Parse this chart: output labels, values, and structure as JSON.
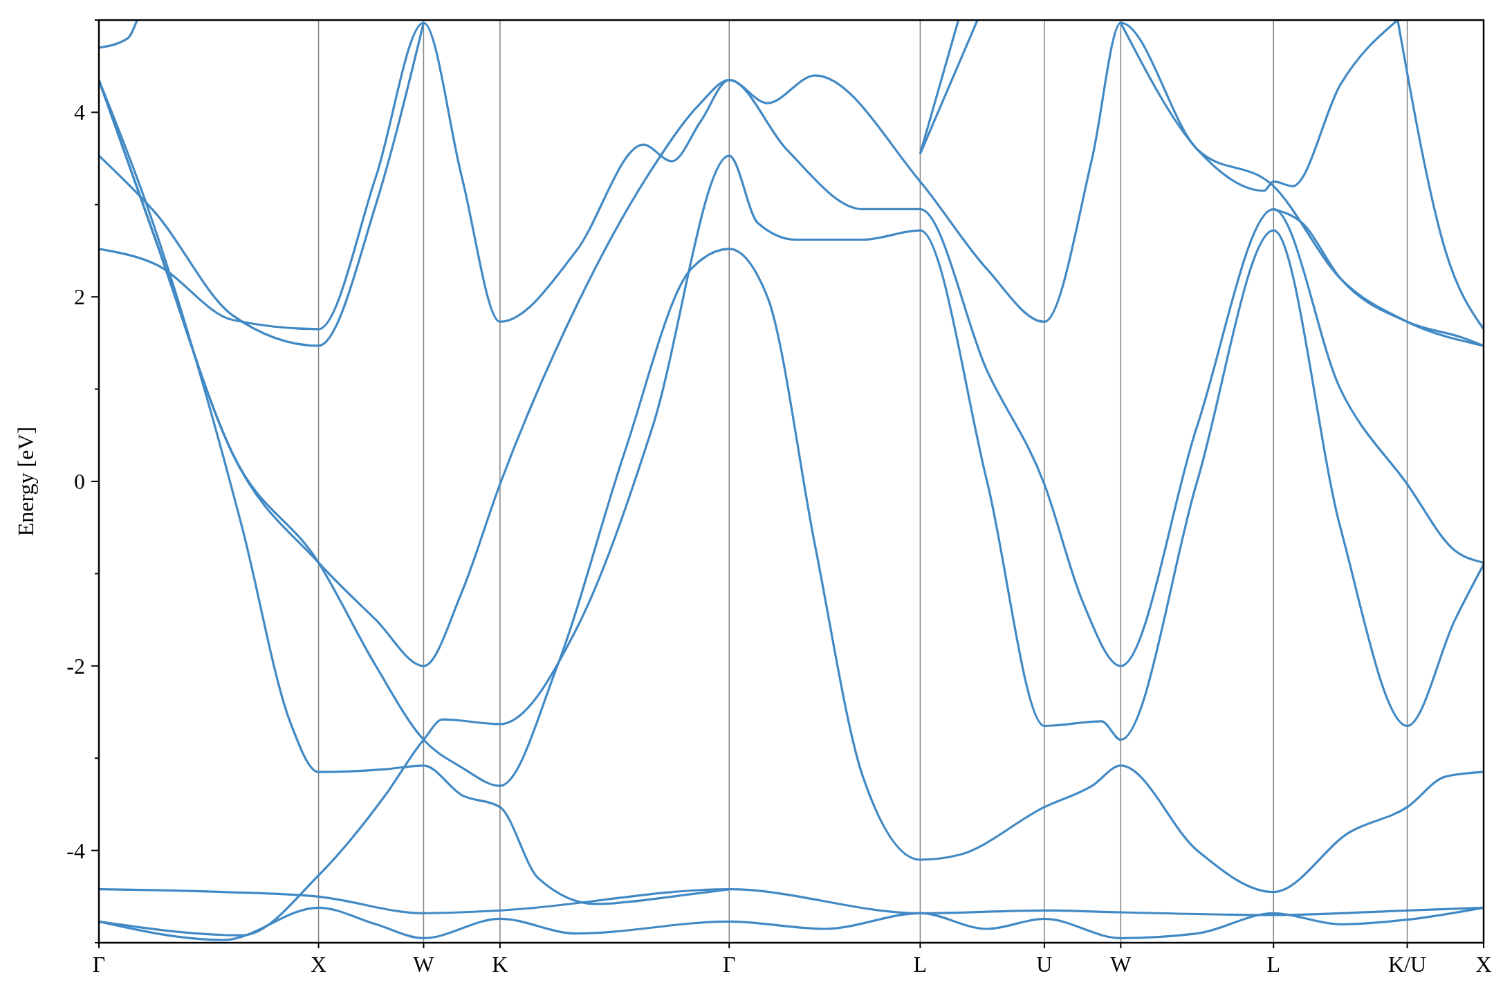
{
  "chart_data": {
    "type": "line",
    "ylabel": "Energy [eV]",
    "ylim": [
      -5,
      5
    ],
    "categories": [
      "Γ",
      null,
      null,
      null,
      null,
      null,
      null,
      null,
      null,
      null,
      null,
      null,
      null,
      null,
      null,
      null,
      null,
      null,
      null,
      null,
      null,
      null,
      null,
      "X",
      null,
      null,
      null,
      null,
      null,
      null,
      null,
      null,
      null,
      null,
      "W",
      null,
      null,
      null,
      null,
      null,
      null,
      null,
      "K",
      null,
      null,
      null,
      null,
      null,
      null,
      null,
      null,
      null,
      null,
      null,
      null,
      null,
      null,
      null,
      null,
      null,
      null,
      null,
      null,
      null,
      null,
      null,
      "Γ",
      null,
      null,
      null,
      null,
      null,
      null,
      null,
      null,
      null,
      null,
      null,
      null,
      null,
      null,
      null,
      null,
      null,
      null,
      null,
      "L",
      null,
      null,
      null,
      null,
      null,
      null,
      null,
      null,
      null,
      null,
      null,
      null,
      "U",
      null,
      null,
      null,
      null,
      null,
      null,
      null,
      "W",
      null,
      null,
      null,
      null,
      null,
      null,
      null,
      null,
      null,
      null,
      null,
      null,
      null,
      null,
      null,
      "L",
      null,
      null,
      null,
      null,
      null,
      null,
      null,
      null,
      null,
      null,
      null,
      null,
      null,
      "K/U",
      null,
      null,
      null,
      null,
      null,
      null,
      null,
      "X"
    ],
    "yticks": [
      {
        "value": -5,
        "label": null
      },
      -4,
      {
        "value": -3,
        "label": null
      },
      -2,
      {
        "value": -1,
        "label": null
      },
      0,
      {
        "value": 1,
        "label": null
      },
      2,
      {
        "value": 3,
        "label": null
      },
      4,
      {
        "value": 5,
        "label": null
      }
    ],
    "grid": "x",
    "line_style": "solid",
    "series": [
      {
        "color": "#4189c4",
        "values": [
          -4.42,
          null,
          null,
          null,
          null,
          null,
          null,
          null,
          null,
          null,
          null,
          null,
          null,
          -4.45,
          null,
          null,
          null,
          null,
          null,
          null,
          null,
          null,
          null,
          -4.5,
          null,
          null,
          null,
          null,
          null,
          null,
          null,
          null,
          null,
          null,
          -4.68,
          null,
          null,
          null,
          null,
          null,
          null,
          null,
          -4.65,
          null,
          null,
          null,
          null,
          null,
          null,
          null,
          null,
          null,
          null,
          null,
          null,
          null,
          null,
          null,
          null,
          null,
          null,
          null,
          null,
          null,
          null,
          null,
          -4.42,
          null,
          null,
          null,
          null,
          null,
          null,
          null,
          null,
          null,
          null,
          null,
          null,
          null,
          null,
          null,
          null,
          null,
          null,
          null,
          -4.68,
          null,
          null,
          null,
          null,
          null,
          null,
          null,
          null,
          null,
          null,
          null,
          null,
          -4.65,
          null,
          null,
          null,
          null,
          null,
          null,
          null,
          -4.67,
          null,
          null,
          null,
          null,
          null,
          null,
          null,
          null,
          null,
          null,
          null,
          null,
          null,
          null,
          null,
          -4.7,
          null,
          null,
          null,
          null,
          null,
          null,
          null,
          null,
          null,
          null,
          null,
          null,
          null,
          -4.65,
          null,
          null,
          null,
          null,
          null,
          null,
          null,
          -4.62
        ]
      },
      {
        "color": "#4189c4",
        "values": [
          -4.77,
          null,
          null,
          null,
          null,
          null,
          null,
          null,
          null,
          null,
          null,
          null,
          null,
          -4.97,
          null,
          null,
          null,
          null,
          null,
          null,
          null,
          null,
          null,
          -4.62,
          null,
          null,
          null,
          null,
          null,
          -4.8,
          null,
          null,
          null,
          null,
          -4.95,
          null,
          null,
          null,
          null,
          null,
          null,
          null,
          -4.74,
          null,
          null,
          null,
          null,
          null,
          null,
          null,
          -4.9,
          null,
          null,
          null,
          null,
          null,
          null,
          null,
          null,
          null,
          null,
          null,
          null,
          null,
          null,
          null,
          -4.77,
          null,
          null,
          null,
          null,
          null,
          null,
          null,
          null,
          null,
          -4.85,
          null,
          null,
          null,
          null,
          null,
          null,
          null,
          null,
          null,
          -4.68,
          null,
          null,
          null,
          null,
          null,
          null,
          -4.85,
          null,
          null,
          null,
          null,
          null,
          -4.74,
          null,
          null,
          null,
          null,
          null,
          null,
          null,
          -4.95,
          null,
          null,
          null,
          null,
          null,
          null,
          null,
          -4.9,
          null,
          null,
          null,
          null,
          null,
          null,
          null,
          -4.68,
          null,
          null,
          null,
          null,
          null,
          null,
          -4.8,
          null,
          null,
          null,
          null,
          null,
          null,
          -4.75,
          null,
          null,
          null,
          null,
          null,
          null,
          null,
          -4.62
        ]
      },
      {
        "color": "#4189c4",
        "values": [
          -4.77,
          null,
          null,
          null,
          null,
          null,
          null,
          null,
          null,
          null,
          null,
          null,
          null,
          null,
          null,
          -4.92,
          null,
          null,
          null,
          null,
          null,
          null,
          null,
          -4.27,
          null,
          null,
          null,
          null,
          null,
          null,
          -3.4,
          null,
          null,
          null,
          -2.8,
          null,
          -2.58,
          null,
          null,
          null,
          null,
          null,
          -2.63,
          null,
          null,
          null,
          null,
          null,
          null,
          null,
          -1.6,
          null,
          null,
          null,
          null,
          null,
          null,
          null,
          0.6,
          null,
          null,
          null,
          null,
          null,
          null,
          null,
          3.53,
          null,
          null,
          2.8,
          null,
          null,
          null,
          2.62,
          null,
          null,
          null,
          null,
          null,
          null,
          2.62,
          null,
          null,
          null,
          null,
          null,
          2.72,
          null,
          null,
          null,
          null,
          null,
          null,
          0,
          null,
          null,
          null,
          null,
          null,
          -2.65,
          null,
          null,
          null,
          null,
          null,
          -2.6,
          null,
          -2.8,
          null,
          null,
          null,
          null,
          null,
          null,
          null,
          0,
          null,
          null,
          null,
          null,
          null,
          null,
          null,
          2.72,
          null,
          null,
          null,
          null,
          null,
          null,
          -0.5,
          null,
          null,
          null,
          null,
          null,
          null,
          -2.65,
          null,
          null,
          null,
          null,
          -1.5,
          null,
          null,
          -0.9
        ]
      },
      {
        "color": "#4189c4",
        "values": [
          4.35,
          null,
          null,
          null,
          null,
          3.0,
          null,
          null,
          null,
          null,
          null,
          null,
          null,
          null,
          null,
          -0.5,
          null,
          null,
          null,
          null,
          -2.6,
          null,
          null,
          -3.15,
          null,
          null,
          null,
          null,
          null,
          null,
          -3.12,
          null,
          null,
          null,
          -3.08,
          null,
          null,
          null,
          -3.4,
          null,
          null,
          null,
          -3.53,
          null,
          null,
          null,
          -4.3,
          null,
          null,
          null,
          null,
          null,
          -4.58,
          null,
          null,
          null,
          null,
          null,
          null,
          null,
          -4.5,
          null,
          null,
          null,
          null,
          null,
          -4.42,
          null,
          null,
          null,
          null,
          null,
          null,
          null,
          null,
          null,
          null,
          null,
          null,
          null,
          null,
          null,
          null,
          null,
          null,
          null,
          null,
          null,
          null,
          null,
          null,
          null,
          null,
          null,
          null,
          null,
          null,
          null,
          null,
          null,
          null,
          null,
          null,
          null,
          null,
          null,
          null,
          null,
          null,
          null,
          null,
          null,
          null,
          null,
          null,
          null,
          null,
          null,
          null,
          null,
          null,
          null,
          null,
          null,
          null,
          null,
          null,
          null,
          null,
          null,
          null,
          null,
          null,
          null,
          null,
          null,
          null,
          null,
          null,
          null,
          null,
          null,
          null,
          null,
          null,
          null
        ]
      },
      {
        "color": "#4189c4",
        "values": [
          4.35,
          null,
          null,
          null,
          null,
          null,
          2.6,
          null,
          null,
          null,
          null,
          null,
          null,
          null,
          0.3,
          null,
          null,
          null,
          null,
          null,
          null,
          null,
          null,
          -0.88,
          null,
          null,
          null,
          null,
          null,
          -2.0,
          null,
          null,
          null,
          null,
          -2.8,
          null,
          null,
          null,
          -3.1,
          null,
          null,
          null,
          -3.3,
          null,
          null,
          null,
          null,
          null,
          -2.0,
          null,
          null,
          null,
          null,
          null,
          null,
          0.3,
          null,
          null,
          null,
          null,
          null,
          null,
          2.3,
          null,
          null,
          null,
          2.52,
          null,
          null,
          null,
          2.0,
          null,
          null,
          null,
          null,
          -0.7,
          null,
          null,
          null,
          null,
          -3.2,
          null,
          null,
          null,
          null,
          null,
          -4.1,
          null,
          null,
          null,
          -4.05,
          null,
          null,
          null,
          null,
          null,
          null,
          null,
          null,
          -3.53,
          null,
          null,
          null,
          null,
          -3.3,
          null,
          null,
          -3.08,
          null,
          null,
          null,
          null,
          null,
          null,
          null,
          -4.0,
          null,
          null,
          null,
          null,
          null,
          null,
          null,
          -4.45,
          null,
          null,
          null,
          null,
          null,
          null,
          null,
          -3.8,
          null,
          null,
          null,
          null,
          null,
          -3.53,
          null,
          null,
          null,
          -3.2,
          null,
          null,
          null,
          -3.15
        ]
      },
      {
        "color": "#4189c4",
        "values": [
          4.35,
          null,
          null,
          null,
          null,
          null,
          2.6,
          null,
          null,
          null,
          null,
          null,
          null,
          null,
          0.3,
          null,
          null,
          null,
          null,
          null,
          null,
          null,
          null,
          -0.88,
          null,
          null,
          null,
          null,
          null,
          -1.5,
          null,
          null,
          null,
          null,
          -2.0,
          null,
          null,
          null,
          -1.2,
          null,
          null,
          null,
          -0.03,
          null,
          null,
          null,
          null,
          null,
          null,
          null,
          1.9,
          null,
          null,
          null,
          null,
          null,
          null,
          null,
          3.4,
          null,
          null,
          null,
          null,
          4.1,
          null,
          null,
          4.35,
          null,
          null,
          null,
          null,
          null,
          3.6,
          null,
          null,
          null,
          null,
          null,
          null,
          null,
          2.95,
          null,
          null,
          null,
          null,
          null,
          2.95,
          null,
          null,
          null,
          null,
          null,
          null,
          1.2,
          null,
          null,
          null,
          null,
          null,
          -0.03,
          null,
          null,
          null,
          -1.3,
          null,
          null,
          null,
          -2.0,
          null,
          null,
          null,
          null,
          null,
          null,
          null,
          0.6,
          null,
          null,
          null,
          null,
          null,
          null,
          null,
          2.95,
          null,
          null,
          null,
          null,
          null,
          null,
          1.0,
          null,
          null,
          null,
          null,
          null,
          null,
          -0.03,
          null,
          null,
          null,
          null,
          -0.75,
          null,
          null,
          -0.88
        ]
      },
      {
        "color": "#4189c4",
        "values": [
          2.52,
          null,
          null,
          null,
          null,
          null,
          2.35,
          null,
          null,
          null,
          null,
          null,
          null,
          null,
          1.75,
          null,
          null,
          null,
          null,
          null,
          null,
          null,
          null,
          1.65,
          null,
          null,
          null,
          null,
          null,
          3.3,
          null,
          null,
          null,
          null,
          4.97,
          null,
          null,
          null,
          3.3,
          null,
          null,
          null,
          1.73,
          null,
          null,
          null,
          null,
          null,
          null,
          null,
          2.5,
          null,
          null,
          null,
          null,
          null,
          null,
          3.65,
          null,
          null,
          3.47,
          null,
          null,
          3.9,
          null,
          null,
          4.35,
          null,
          null,
          null,
          4.1,
          null,
          null,
          null,
          null,
          4.4,
          null,
          null,
          null,
          null,
          null,
          null,
          null,
          null,
          null,
          null,
          3.25,
          null,
          null,
          null,
          null,
          null,
          null,
          2.3,
          null,
          null,
          null,
          null,
          null,
          1.73,
          null,
          null,
          null,
          null,
          3.5,
          null,
          null,
          4.97,
          null,
          null,
          null,
          null,
          null,
          null,
          null,
          3.6,
          null,
          null,
          null,
          null,
          null,
          null,
          null,
          3.2,
          null,
          null,
          null,
          null,
          null,
          null,
          2.2,
          null,
          null,
          null,
          null,
          null,
          null,
          1.73,
          null,
          null,
          null,
          null,
          null,
          null,
          null,
          1.47
        ]
      },
      {
        "color": "#4189c4",
        "values": [
          3.53,
          null,
          null,
          null,
          null,
          null,
          2.9,
          null,
          null,
          null,
          null,
          null,
          null,
          null,
          1.8,
          null,
          null,
          null,
          null,
          null,
          null,
          null,
          null,
          1.47,
          null,
          null,
          null,
          null,
          null,
          3.0,
          null,
          null,
          null,
          null,
          4.97,
          null,
          null,
          null,
          null,
          null,
          null,
          null,
          null,
          null,
          null,
          null,
          null,
          null,
          null,
          null,
          null,
          null,
          null,
          null,
          null,
          null,
          null,
          null,
          null,
          null,
          null,
          null,
          null,
          null,
          null,
          null,
          null,
          null,
          null,
          null,
          null,
          null,
          null,
          null,
          null,
          null,
          null,
          null,
          null,
          null,
          null,
          null,
          null,
          null,
          null,
          null,
          null,
          null,
          null,
          null,
          null,
          null,
          null,
          null,
          null,
          null,
          null,
          null,
          null,
          null,
          null,
          null,
          null,
          null,
          null,
          null,
          null,
          null,
          null,
          null,
          null,
          null,
          null,
          null,
          null,
          null,
          null,
          null,
          null,
          null,
          null,
          null,
          null,
          null,
          null,
          null,
          null,
          null,
          null,
          null,
          null,
          null,
          null,
          null,
          null,
          null,
          null,
          null,
          null,
          null,
          null,
          null,
          null,
          null,
          null,
          null
        ]
      },
      {
        "color": "#4189c4",
        "values": [
          null,
          null,
          null,
          null,
          null,
          null,
          null,
          null,
          null,
          null,
          null,
          null,
          null,
          null,
          null,
          null,
          null,
          null,
          null,
          null,
          null,
          null,
          null,
          null,
          null,
          null,
          null,
          null,
          null,
          null,
          null,
          null,
          null,
          null,
          null,
          null,
          null,
          null,
          null,
          null,
          null,
          null,
          null,
          null,
          null,
          null,
          null,
          null,
          null,
          null,
          null,
          null,
          null,
          null,
          null,
          null,
          null,
          null,
          null,
          null,
          null,
          null,
          null,
          null,
          null,
          null,
          null,
          null,
          null,
          null,
          null,
          null,
          null,
          null,
          null,
          null,
          null,
          null,
          null,
          null,
          null,
          null,
          null,
          null,
          null,
          null,
          3.55,
          null,
          null,
          null,
          null,
          null,
          5.0,
          null,
          null,
          null,
          null,
          null,
          null,
          null,
          null,
          null,
          null,
          null,
          null,
          null,
          null,
          null,
          null,
          null,
          null,
          null,
          null,
          null,
          null,
          null,
          null,
          null,
          null,
          null,
          null,
          null,
          null,
          null,
          null,
          null,
          null,
          null,
          null,
          null,
          null,
          null,
          null,
          null,
          null,
          null,
          null,
          null,
          null,
          null,
          null,
          null,
          null,
          null,
          null,
          null
        ]
      },
      {
        "color": "#4189c4",
        "values": [
          null,
          null,
          null,
          null,
          null,
          null,
          null,
          null,
          null,
          null,
          null,
          null,
          null,
          null,
          null,
          null,
          null,
          null,
          null,
          null,
          null,
          null,
          null,
          null,
          null,
          null,
          null,
          null,
          null,
          null,
          null,
          null,
          null,
          null,
          null,
          null,
          null,
          null,
          null,
          null,
          null,
          null,
          null,
          null,
          null,
          null,
          null,
          null,
          null,
          null,
          null,
          null,
          null,
          null,
          null,
          null,
          null,
          null,
          null,
          null,
          null,
          null,
          null,
          null,
          null,
          null,
          null,
          null,
          null,
          null,
          null,
          null,
          null,
          null,
          null,
          null,
          null,
          null,
          null,
          null,
          null,
          null,
          null,
          null,
          null,
          null,
          3.55,
          null,
          null,
          null,
          5.0,
          null,
          null,
          null,
          null,
          null,
          null,
          null,
          null,
          null,
          null,
          null,
          null,
          null,
          null,
          null,
          null,
          null,
          null,
          null,
          null,
          null,
          null,
          null,
          null,
          null,
          null,
          null,
          null,
          null,
          null,
          null,
          null,
          null,
          null,
          null,
          null,
          null,
          null,
          null,
          null,
          null,
          null,
          null,
          null,
          null,
          null,
          null,
          null,
          null,
          null,
          null,
          null,
          null,
          null,
          null
        ]
      },
      {
        "color": "#4189c4",
        "values": [
          null,
          null,
          null,
          null,
          null,
          null,
          null,
          null,
          null,
          null,
          null,
          null,
          null,
          null,
          null,
          null,
          null,
          null,
          null,
          null,
          null,
          null,
          null,
          null,
          null,
          null,
          null,
          null,
          null,
          null,
          null,
          null,
          null,
          null,
          null,
          null,
          null,
          null,
          null,
          null,
          null,
          null,
          null,
          null,
          null,
          null,
          null,
          null,
          null,
          null,
          null,
          null,
          null,
          null,
          null,
          null,
          null,
          null,
          null,
          null,
          null,
          null,
          null,
          null,
          null,
          null,
          null,
          null,
          null,
          null,
          null,
          null,
          null,
          null,
          null,
          null,
          null,
          null,
          null,
          null,
          null,
          null,
          null,
          null,
          null,
          null,
          null,
          null,
          null,
          null,
          null,
          null,
          null,
          null,
          null,
          null,
          null,
          null,
          null,
          null,
          null,
          null,
          null,
          null,
          null,
          null,
          null,
          null,
          null,
          null,
          null,
          null,
          null,
          null,
          null,
          null,
          null,
          null,
          null,
          null,
          null,
          null,
          null,
          2.95,
          null,
          null,
          2.8,
          null,
          null,
          null,
          2.2,
          null,
          null,
          null,
          null,
          null,
          null,
          1.73,
          null,
          null,
          null,
          null,
          null,
          1.55,
          null,
          1.47
        ]
      },
      {
        "color": "#4189c4",
        "values": [
          null,
          null,
          null,
          null,
          null,
          null,
          null,
          null,
          null,
          null,
          null,
          null,
          null,
          null,
          null,
          null,
          null,
          null,
          null,
          null,
          null,
          null,
          null,
          null,
          null,
          null,
          null,
          null,
          null,
          null,
          null,
          null,
          null,
          null,
          null,
          null,
          null,
          null,
          null,
          null,
          null,
          null,
          null,
          null,
          null,
          null,
          null,
          null,
          null,
          null,
          null,
          null,
          null,
          null,
          null,
          null,
          null,
          null,
          null,
          null,
          null,
          null,
          null,
          null,
          null,
          null,
          null,
          null,
          null,
          null,
          null,
          null,
          null,
          null,
          null,
          null,
          null,
          null,
          null,
          null,
          null,
          null,
          null,
          null,
          null,
          null,
          null,
          null,
          null,
          null,
          null,
          null,
          null,
          null,
          null,
          null,
          null,
          null,
          null,
          null,
          null,
          null,
          null,
          null,
          null,
          null,
          null,
          4.97,
          null,
          null,
          null,
          null,
          null,
          null,
          null,
          3.6,
          null,
          null,
          null,
          null,
          null,
          null,
          3.15,
          3.25,
          null,
          3.2,
          null,
          null,
          null,
          null,
          4.3,
          null,
          null,
          null,
          null,
          null,
          5.0,
          null,
          null,
          null,
          null,
          null,
          null,
          null,
          null,
          null
        ]
      },
      {
        "color": "#4189c4",
        "values": [
          null,
          null,
          null,
          null,
          null,
          null,
          null,
          null,
          null,
          null,
          null,
          null,
          null,
          null,
          null,
          null,
          null,
          null,
          null,
          null,
          null,
          null,
          null,
          null,
          null,
          null,
          null,
          null,
          null,
          null,
          null,
          null,
          null,
          null,
          null,
          null,
          null,
          null,
          null,
          null,
          null,
          null,
          null,
          null,
          null,
          null,
          null,
          null,
          null,
          null,
          null,
          null,
          null,
          null,
          null,
          null,
          null,
          null,
          null,
          null,
          null,
          null,
          null,
          null,
          null,
          null,
          null,
          null,
          null,
          null,
          null,
          null,
          null,
          null,
          null,
          null,
          null,
          null,
          null,
          null,
          null,
          null,
          null,
          null,
          null,
          null,
          null,
          null,
          null,
          null,
          null,
          null,
          null,
          null,
          null,
          null,
          null,
          null,
          null,
          null,
          null,
          null,
          null,
          null,
          null,
          null,
          null,
          null,
          null,
          null,
          null,
          null,
          null,
          null,
          null,
          null,
          null,
          null,
          null,
          null,
          null,
          null,
          null,
          null,
          null,
          null,
          null,
          null,
          null,
          null,
          null,
          null,
          null,
          null,
          null,
          null,
          5.0,
          null,
          null,
          null,
          null,
          2.5,
          null,
          null,
          null,
          1.65
        ]
      },
      {
        "color": "#4189c4",
        "values": [
          4.7,
          null,
          null,
          4.8,
          5.0,
          null,
          null,
          null,
          null,
          null,
          null,
          null,
          null,
          null,
          null,
          null,
          null,
          null,
          null,
          null,
          null,
          null,
          null,
          null,
          null,
          null,
          null,
          null,
          null,
          null,
          null,
          null,
          null,
          null,
          null,
          null,
          null,
          null,
          null,
          null,
          null,
          null,
          null,
          null,
          null,
          null,
          null,
          null,
          null,
          null,
          null,
          null,
          null,
          null,
          null,
          null,
          null,
          null,
          null,
          null,
          null,
          null,
          null,
          null,
          null,
          null,
          null,
          null,
          null,
          null,
          null,
          null,
          null,
          null,
          null,
          null,
          null,
          null,
          null,
          null,
          null,
          null,
          null,
          null,
          null,
          null,
          null,
          null,
          null,
          null,
          null,
          null,
          null,
          null,
          null,
          null,
          null,
          null,
          null,
          null,
          null,
          null,
          null,
          null,
          null,
          null,
          null,
          null,
          null,
          null,
          null,
          null,
          null,
          null,
          null,
          null,
          null,
          null,
          null,
          null,
          null,
          null,
          null,
          null,
          null,
          null,
          null,
          null,
          null,
          null,
          null,
          null,
          null,
          null,
          null,
          null,
          null,
          null,
          null,
          null,
          null,
          null,
          null,
          null,
          null,
          null
        ]
      }
    ]
  }
}
